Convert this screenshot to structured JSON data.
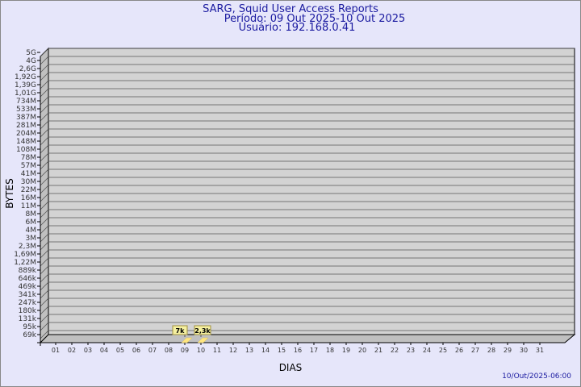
{
  "chart_data": {
    "type": "bar",
    "title": "SARG, Squid User Access Reports",
    "subtitle_period": "Período: 09 Out 2025-10 Out 2025",
    "subtitle_user": "Usuário: 192.168.0.41",
    "xlabel": "DIAS",
    "ylabel": "BYTES",
    "y_scale": "log",
    "y_tick_labels": [
      "5G",
      "4G",
      "2,6G",
      "1,92G",
      "1,39G",
      "1,01G",
      "734M",
      "533M",
      "387M",
      "281M",
      "204M",
      "148M",
      "108M",
      "78M",
      "57M",
      "41M",
      "30M",
      "22M",
      "16M",
      "11M",
      "8M",
      "6M",
      "4M",
      "3M",
      "2,3M",
      "1,69M",
      "1,22M",
      "889k",
      "646k",
      "469k",
      "341k",
      "247k",
      "180k",
      "131k",
      "95k",
      "69k"
    ],
    "categories": [
      "01",
      "02",
      "03",
      "04",
      "05",
      "06",
      "07",
      "08",
      "09",
      "10",
      "11",
      "12",
      "13",
      "14",
      "15",
      "16",
      "17",
      "18",
      "19",
      "20",
      "21",
      "22",
      "23",
      "24",
      "25",
      "26",
      "27",
      "28",
      "29",
      "30",
      "31"
    ],
    "bars": [
      {
        "day": "09",
        "value": 7000,
        "label": "7k"
      },
      {
        "day": "10",
        "value": 2300,
        "label": "2,3k"
      }
    ],
    "grid": true,
    "colors": {
      "background": "#e6e6fa",
      "plot": "#d3d3d3",
      "bar": "#ffe680",
      "text": "#1a1aa0"
    }
  },
  "timestamp": "10/Out/2025-06:00"
}
